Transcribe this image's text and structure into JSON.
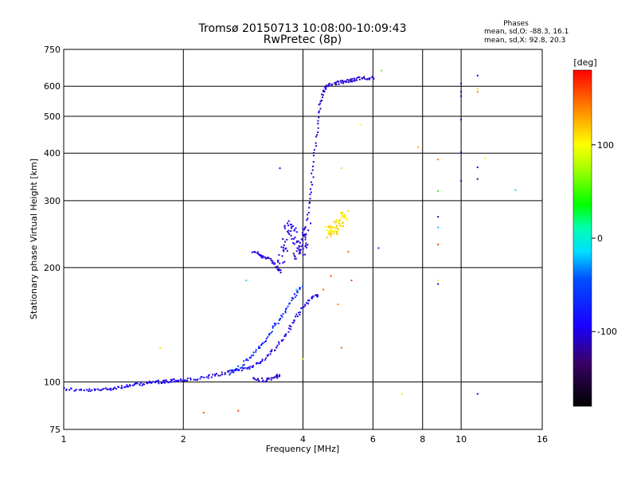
{
  "chart_data": {
    "type": "scatter",
    "title": "Tromsø 20150713 10:08:00-10:09:43",
    "subtitle": "RwPretec (8p)",
    "stats": {
      "heading": "Phases",
      "line_o": "mean, sd,O: -88.3, 16.1",
      "line_x": "mean, sd,X:  92.8, 20.3"
    },
    "xlabel": "Frequency [MHz]",
    "ylabel": "Stationary phase Virtual Height [km]",
    "x_scale": "log",
    "y_scale": "log",
    "xlim": [
      1,
      16
    ],
    "ylim": [
      75,
      750
    ],
    "x_ticks": [
      1,
      2,
      4,
      6,
      8,
      10,
      16
    ],
    "x_tick_labels": [
      "1",
      "2",
      "4",
      "6",
      "8",
      "10",
      "16"
    ],
    "y_ticks": [
      75,
      100,
      200,
      300,
      400,
      500,
      600,
      750
    ],
    "y_tick_labels": [
      "75",
      "100",
      "200",
      "300",
      "400",
      "500",
      "600",
      "750"
    ],
    "grid": true,
    "colorbar": {
      "label": "[deg]",
      "range": [
        -180,
        180
      ],
      "ticks": [
        100,
        0,
        -100
      ],
      "tick_labels": [
        "100",
        "0",
        "-100"
      ]
    },
    "traces": [
      {
        "shape": "curve",
        "phase": -95,
        "points": [
          [
            1.0,
            96
          ],
          [
            1.1,
            95
          ],
          [
            1.2,
            95
          ],
          [
            1.3,
            96
          ],
          [
            1.4,
            97
          ],
          [
            1.5,
            98
          ],
          [
            1.6,
            99
          ],
          [
            1.7,
            100
          ],
          [
            1.8,
            100
          ],
          [
            1.9,
            101
          ],
          [
            2.0,
            101
          ],
          [
            2.2,
            102
          ],
          [
            2.4,
            104
          ],
          [
            2.6,
            106
          ],
          [
            2.8,
            108
          ],
          [
            3.0,
            110
          ],
          [
            3.2,
            115
          ],
          [
            3.4,
            122
          ],
          [
            3.6,
            132
          ],
          [
            3.8,
            145
          ],
          [
            4.0,
            158
          ],
          [
            4.2,
            166
          ],
          [
            4.4,
            170
          ]
        ]
      },
      {
        "shape": "curve",
        "phase": -70,
        "points": [
          [
            2.6,
            105
          ],
          [
            2.8,
            110
          ],
          [
            3.0,
            118
          ],
          [
            3.2,
            128
          ],
          [
            3.4,
            140
          ],
          [
            3.6,
            152
          ],
          [
            3.8,
            168
          ],
          [
            4.0,
            180
          ]
        ]
      },
      {
        "shape": "curve",
        "phase": -105,
        "points": [
          [
            3.0,
            102
          ],
          [
            3.2,
            101
          ],
          [
            3.4,
            103
          ],
          [
            3.5,
            104
          ]
        ]
      },
      {
        "shape": "curve",
        "phase": -100,
        "points": [
          [
            3.0,
            220
          ],
          [
            3.15,
            215
          ],
          [
            3.3,
            210
          ],
          [
            3.45,
            200
          ],
          [
            3.5,
            195
          ]
        ]
      },
      {
        "shape": "cloud",
        "phase": -100,
        "points": [
          [
            3.5,
            200
          ],
          [
            3.6,
            230
          ],
          [
            3.7,
            260
          ],
          [
            3.8,
            240
          ],
          [
            3.9,
            215
          ],
          [
            4.0,
            225
          ],
          [
            4.05,
            245
          ],
          [
            4.1,
            260
          ]
        ]
      },
      {
        "shape": "curve",
        "phase": -105,
        "points": [
          [
            4.1,
            270
          ],
          [
            4.2,
            330
          ],
          [
            4.3,
            420
          ],
          [
            4.4,
            520
          ],
          [
            4.5,
            580
          ],
          [
            4.6,
            600
          ],
          [
            4.8,
            610
          ],
          [
            5.0,
            615
          ],
          [
            5.2,
            620
          ],
          [
            5.4,
            625
          ],
          [
            5.7,
            630
          ],
          [
            6.1,
            632
          ]
        ]
      },
      {
        "shape": "cloud",
        "phase": 110,
        "points": [
          [
            4.6,
            250
          ],
          [
            4.7,
            248
          ],
          [
            4.8,
            252
          ],
          [
            4.9,
            258
          ],
          [
            5.0,
            268
          ],
          [
            5.1,
            278
          ]
        ]
      }
    ],
    "points": [
      {
        "x": 1.75,
        "y": 123,
        "phase": 110
      },
      {
        "x": 2.25,
        "y": 83,
        "phase": 155
      },
      {
        "x": 2.75,
        "y": 84,
        "phase": 160
      },
      {
        "x": 2.88,
        "y": 185,
        "phase": -10
      },
      {
        "x": 3.5,
        "y": 365,
        "phase": -100
      },
      {
        "x": 3.85,
        "y": 175,
        "phase": -20
      },
      {
        "x": 4.0,
        "y": 115,
        "phase": 110
      },
      {
        "x": 4.5,
        "y": 175,
        "phase": 150
      },
      {
        "x": 4.7,
        "y": 190,
        "phase": 160
      },
      {
        "x": 4.9,
        "y": 160,
        "phase": 140
      },
      {
        "x": 5.0,
        "y": 123,
        "phase": 150
      },
      {
        "x": 5.0,
        "y": 365,
        "phase": 80
      },
      {
        "x": 5.2,
        "y": 220,
        "phase": 150
      },
      {
        "x": 5.3,
        "y": 185,
        "phase": 160
      },
      {
        "x": 5.6,
        "y": 475,
        "phase": 100
      },
      {
        "x": 6.2,
        "y": 225,
        "phase": -60
      },
      {
        "x": 6.3,
        "y": 660,
        "phase": 60
      },
      {
        "x": 7.1,
        "y": 93,
        "phase": 110
      },
      {
        "x": 7.8,
        "y": 415,
        "phase": 130
      },
      {
        "x": 8.75,
        "y": 385,
        "phase": 140
      },
      {
        "x": 8.75,
        "y": 318,
        "phase": 40
      },
      {
        "x": 8.75,
        "y": 272,
        "phase": -110
      },
      {
        "x": 8.75,
        "y": 255,
        "phase": -20
      },
      {
        "x": 8.75,
        "y": 230,
        "phase": 160
      },
      {
        "x": 8.75,
        "y": 185,
        "phase": 110
      },
      {
        "x": 8.75,
        "y": 181,
        "phase": -110
      },
      {
        "x": 10.0,
        "y": 610,
        "phase": -120
      },
      {
        "x": 10.0,
        "y": 580,
        "phase": -110
      },
      {
        "x": 10.0,
        "y": 565,
        "phase": -110
      },
      {
        "x": 10.0,
        "y": 490,
        "phase": -110
      },
      {
        "x": 10.0,
        "y": 402,
        "phase": -115
      },
      {
        "x": 10.0,
        "y": 338,
        "phase": -120
      },
      {
        "x": 11.0,
        "y": 640,
        "phase": -110
      },
      {
        "x": 11.0,
        "y": 590,
        "phase": 110
      },
      {
        "x": 11.0,
        "y": 580,
        "phase": 140
      },
      {
        "x": 11.0,
        "y": 367,
        "phase": -115
      },
      {
        "x": 11.0,
        "y": 342,
        "phase": -130
      },
      {
        "x": 11.0,
        "y": 93,
        "phase": -110
      },
      {
        "x": 11.5,
        "y": 388,
        "phase": 100
      },
      {
        "x": 13.7,
        "y": 320,
        "phase": -15
      }
    ]
  }
}
